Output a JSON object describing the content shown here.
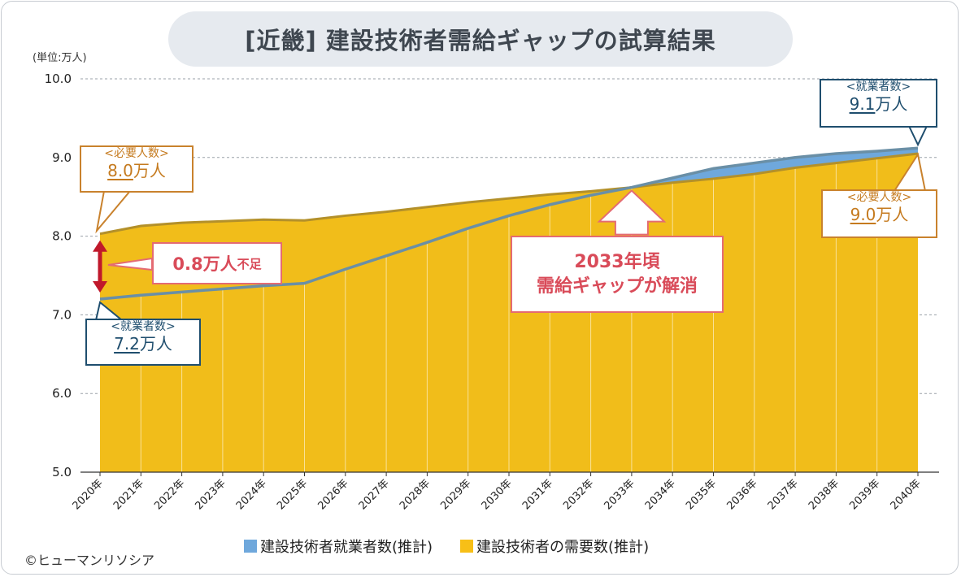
{
  "title": "[近畿] 建設技術者需給ギャップの試算結果",
  "unit_label": "(単位:万人)",
  "colors": {
    "supply": "#6fa8dc",
    "demand": "#f0c020",
    "supply_line": "#6a8fa6",
    "demand_line": "#b3902a",
    "accent": "#d94b59"
  },
  "chart_data": {
    "type": "area",
    "x": [
      "2020年",
      "2021年",
      "2022年",
      "2023年",
      "2024年",
      "2025年",
      "2026年",
      "2027年",
      "2028年",
      "2029年",
      "2030年",
      "2031年",
      "2032年",
      "2033年",
      "2034年",
      "2035年",
      "2036年",
      "2037年",
      "2038年",
      "2039年",
      "2040年"
    ],
    "series": [
      {
        "name": "建設技術者就業者数(推計)",
        "values": [
          7.2,
          7.25,
          7.29,
          7.33,
          7.37,
          7.4,
          7.58,
          7.75,
          7.92,
          8.1,
          8.26,
          8.4,
          8.52,
          8.62,
          8.74,
          8.86,
          8.93,
          9.0,
          9.05,
          9.08,
          9.12
        ]
      },
      {
        "name": "建設技術者の需要数(推計)",
        "values": [
          8.03,
          8.13,
          8.17,
          8.19,
          8.21,
          8.2,
          8.26,
          8.31,
          8.37,
          8.43,
          8.48,
          8.53,
          8.57,
          8.62,
          8.68,
          8.73,
          8.79,
          8.87,
          8.93,
          8.99,
          9.05
        ]
      }
    ],
    "yticks": [
      "5.0",
      "6.0",
      "7.0",
      "8.0",
      "9.0",
      "10.0"
    ],
    "ylim": [
      5.0,
      10.0
    ],
    "grid": true,
    "legend": "bottom"
  },
  "callouts": {
    "need2020": {
      "title": "<必要人数>",
      "num": "8.0",
      "unit": "万人"
    },
    "emp2020": {
      "title": "<就業者数>",
      "num": "7.2",
      "unit": "万人"
    },
    "emp2040": {
      "title": "<就業者数>",
      "num": "9.1",
      "unit": "万人"
    },
    "need2040": {
      "title": "<必要人数>",
      "num": "9.0",
      "unit": "万人"
    },
    "shortage": {
      "big": "0.8万人",
      "small": "不足"
    },
    "resolve": {
      "line1": "2033年頃",
      "line2": "需給ギャップが解消"
    }
  },
  "copyright": "©ヒューマンリソシア"
}
